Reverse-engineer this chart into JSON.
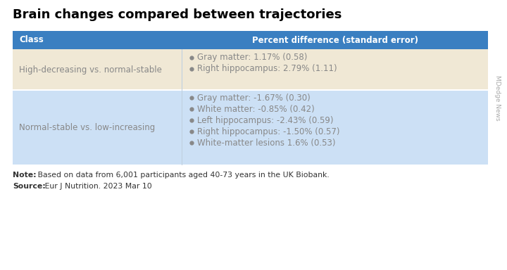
{
  "title": "Brain changes compared between trajectories",
  "header": [
    "Class",
    "Percent difference (standard error)"
  ],
  "header_bg": "#3a7fc1",
  "header_text_color": "#ffffff",
  "row1_bg": "#f0e8d5",
  "row2_bg": "#cce0f5",
  "row1_class": "High-decreasing vs. normal-stable",
  "row2_class": "Normal-stable vs. low-increasing",
  "row1_items": [
    "Gray matter: 1.17% (0.58)",
    "Right hippocampus: 2.79% (1.11)"
  ],
  "row2_items": [
    "Gray matter: -1.67% (0.30)",
    "White matter: -0.85% (0.42)",
    "Left hippocampus: -2.43% (0.59)",
    "Right hippocampus: -1.50% (0.57)",
    "White-matter lesions 1.6% (0.53)"
  ],
  "note_bold": "Note:",
  "note_rest": " Based on data from 6,001 participants aged 40-73 years in the UK Biobank.",
  "source_bold": "Source:",
  "source_rest": " Eur J Nutrition. 2023 Mar 10",
  "watermark": "MDedge News",
  "text_color": "#888888",
  "title_color": "#000000",
  "note_color": "#333333",
  "bullet_color": "#888888",
  "header_bg_color": "#3a7fc1",
  "divider_color": "#c0d0e0"
}
